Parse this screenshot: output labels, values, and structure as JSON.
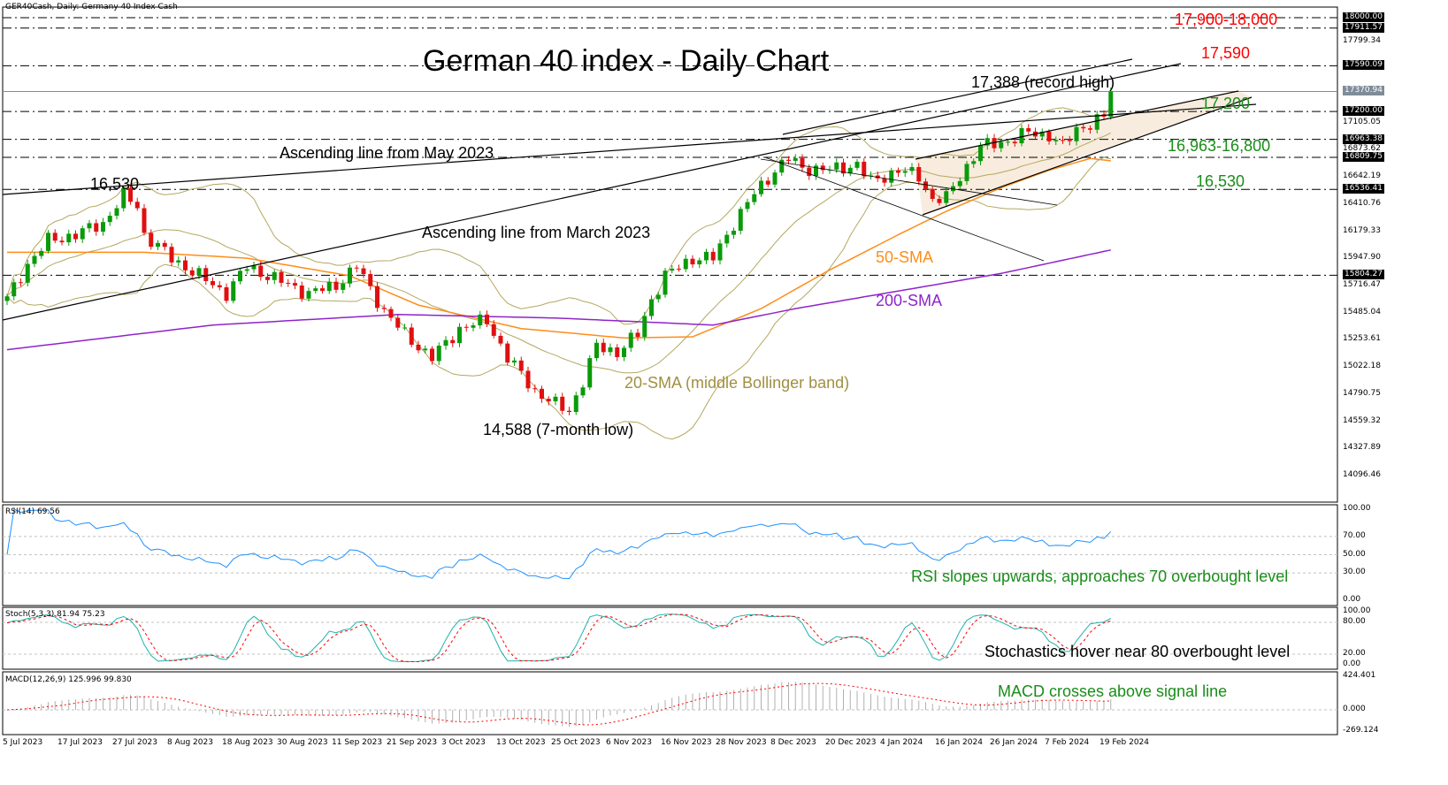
{
  "header": {
    "symbol_info": "GER40Cash, Daily:  Germany 40 Index Cash"
  },
  "title": "German 40 index - Daily Chart",
  "annotations": {
    "res_1": "17,900-18,000",
    "res_2": "17,590",
    "record": "17,388 (record high)",
    "lvl_17200": "17,200",
    "sup_1": "16,963-16,800",
    "sup_2": "16,530",
    "high_left": "16,530",
    "asc_may": "Ascending line from May 2023",
    "asc_march": "Ascending line from March 2023",
    "sma50": "50-SMA",
    "sma200": "200-SMA",
    "sma20": "20-SMA (middle Bollinger band)",
    "low": "14,588 (7-month low)",
    "rsi_note": "RSI slopes upwards, approaches 70 overbought level",
    "stoch_note": "Stochastics hover near 80 overbought level",
    "macd_note": "MACD crosses above signal line"
  },
  "colors": {
    "up": "#0a9a0a",
    "down": "#e01010",
    "bb": "#b3a860",
    "sma50": "#ff8c1a",
    "sma200": "#8e24c9",
    "rsi": "#1e90ff",
    "stoch_k": "#20b2aa",
    "stoch_d": "#ff0000",
    "red_text": "#ff0000",
    "green_text": "#1a8c1a"
  },
  "price_axis": {
    "ticks": [
      "17799.34",
      "17105.05",
      "16873.62",
      "16642.19",
      "16410.76",
      "16179.33",
      "15947.90",
      "15716.47",
      "15485.04",
      "15253.61",
      "15022.18",
      "14790.75",
      "14559.32",
      "14327.89",
      "14096.46"
    ],
    "levels": [
      "18000.00",
      "17911.57",
      "17590.09",
      "17200.00",
      "16963.38",
      "16809.75",
      "16536.41",
      "15804.27"
    ],
    "current": "17370.94"
  },
  "panels": {
    "rsi": {
      "label": "RSI(14) 69.56",
      "ticks": [
        "100.00",
        "70.00",
        "50.00",
        "30.00",
        "0.00"
      ]
    },
    "stoch": {
      "label": "Stoch(5,3,3) 81.94 75.23",
      "ticks": [
        "100.00",
        "80.00",
        "20.00",
        "0.00"
      ]
    },
    "macd": {
      "label": "MACD(12,26,9) 125.996 99.830",
      "ticks": [
        "424.401",
        "0.000",
        "-269.124"
      ]
    }
  },
  "x_axis": {
    "labels": [
      "5 Jul 2023",
      "17 Jul 2023",
      "27 Jul 2023",
      "8 Aug 2023",
      "18 Aug 2023",
      "30 Aug 2023",
      "11 Sep 2023",
      "21 Sep 2023",
      "3 Oct 2023",
      "13 Oct 2023",
      "25 Oct 2023",
      "6 Nov 2023",
      "16 Nov 2023",
      "28 Nov 2023",
      "8 Dec 2023",
      "20 Dec 2023",
      "4 Jan 2024",
      "16 Jan 2024",
      "26 Jan 2024",
      "7 Feb 2024",
      "19 Feb 2024"
    ]
  },
  "chart_data": {
    "type": "candlestick",
    "title": "German 40 index - Daily Chart",
    "ylim": [
      14000,
      18050
    ],
    "close_anchors": [
      [
        0,
        15600
      ],
      [
        3,
        15900
      ],
      [
        6,
        16100
      ],
      [
        10,
        16150
      ],
      [
        14,
        16250
      ],
      [
        17,
        16480
      ],
      [
        19,
        16400
      ],
      [
        20,
        16150
      ],
      [
        24,
        15950
      ],
      [
        28,
        15800
      ],
      [
        32,
        15650
      ],
      [
        35,
        15880
      ],
      [
        40,
        15750
      ],
      [
        44,
        15650
      ],
      [
        48,
        15720
      ],
      [
        51,
        15880
      ],
      [
        55,
        15500
      ],
      [
        58,
        15300
      ],
      [
        62,
        15100
      ],
      [
        66,
        15350
      ],
      [
        70,
        15420
      ],
      [
        73,
        15100
      ],
      [
        77,
        14820
      ],
      [
        80,
        14700
      ],
      [
        82,
        14650
      ],
      [
        84,
        14900
      ],
      [
        86,
        15200
      ],
      [
        89,
        15150
      ],
      [
        92,
        15300
      ],
      [
        94,
        15600
      ],
      [
        96,
        15800
      ],
      [
        100,
        15950
      ],
      [
        103,
        15950
      ],
      [
        106,
        16250
      ],
      [
        109,
        16500
      ],
      [
        112,
        16700
      ],
      [
        114,
        16800
      ],
      [
        116,
        16720
      ],
      [
        120,
        16700
      ],
      [
        124,
        16750
      ],
      [
        126,
        16600
      ],
      [
        130,
        16700
      ],
      [
        133,
        16650
      ],
      [
        135,
        16450
      ],
      [
        137,
        16460
      ],
      [
        139,
        16650
      ],
      [
        142,
        16900
      ],
      [
        146,
        16950
      ],
      [
        149,
        17020
      ],
      [
        152,
        17000
      ],
      [
        154,
        16900
      ],
      [
        156,
        17050
      ],
      [
        159,
        17120
      ],
      [
        160,
        17150
      ],
      [
        161,
        17370
      ]
    ],
    "sma50_anchors": [
      [
        0,
        16000
      ],
      [
        20,
        16000
      ],
      [
        35,
        15950
      ],
      [
        50,
        15800
      ],
      [
        60,
        15550
      ],
      [
        75,
        15350
      ],
      [
        90,
        15270
      ],
      [
        100,
        15280
      ],
      [
        110,
        15520
      ],
      [
        120,
        15850
      ],
      [
        130,
        16150
      ],
      [
        137,
        16350
      ],
      [
        145,
        16550
      ],
      [
        152,
        16700
      ],
      [
        158,
        16800
      ],
      [
        161,
        16780
      ]
    ],
    "sma200_anchors": [
      [
        0,
        15170
      ],
      [
        30,
        15380
      ],
      [
        57,
        15470
      ],
      [
        80,
        15440
      ],
      [
        103,
        15380
      ],
      [
        115,
        15520
      ],
      [
        129,
        15660
      ],
      [
        145,
        15820
      ],
      [
        161,
        16020
      ]
    ]
  }
}
